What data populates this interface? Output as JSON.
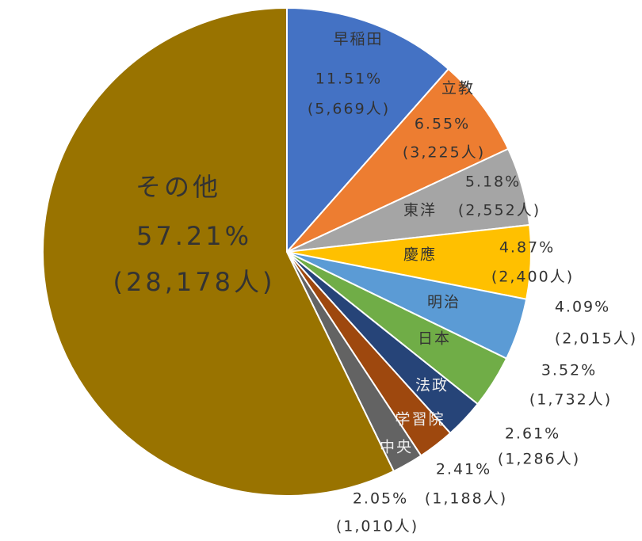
{
  "chart_data": {
    "type": "pie",
    "categories": [
      "早稲田",
      "立教",
      "東洋",
      "慶應",
      "明治",
      "日本",
      "法政",
      "学習院",
      "中央",
      "その他"
    ],
    "values": [
      11.51,
      6.55,
      5.18,
      4.87,
      4.09,
      3.52,
      2.61,
      2.41,
      2.05,
      57.21
    ],
    "value_labels": [
      "11.51%",
      "6.55%",
      "5.18%",
      "4.87%",
      "4.09%",
      "3.52%",
      "2.61%",
      "2.41%",
      "2.05%",
      "57.21%"
    ],
    "count_labels": [
      "(5,669人)",
      "(3,225人)",
      "(2,552人)",
      "(2,400人)",
      "(2,015人)",
      "(1,732人)",
      "(1,286人)",
      "(1,188人)",
      "(1,010人)",
      "(28,178人)"
    ],
    "colors": [
      "#4472c4",
      "#ed7d31",
      "#a5a5a5",
      "#ffc000",
      "#5b9bd5",
      "#70ad47",
      "#264478",
      "#9e480e",
      "#636363",
      "#997300"
    ]
  }
}
